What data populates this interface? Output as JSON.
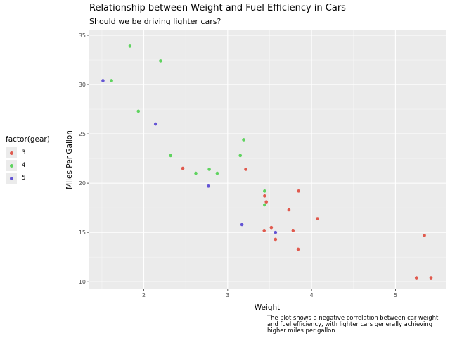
{
  "chart_data": {
    "type": "scatter",
    "title": "Relationship between Weight and Fuel Efficiency in Cars",
    "subtitle": "Should we be driving lighter cars?",
    "caption": "The plot shows a negative correlation between car weight and fuel efficiency, with lighter cars generally achieving higher miles per gallon",
    "xlabel": "Weight",
    "ylabel": "Miles Per Gallon",
    "xlim": [
      1.35,
      5.6
    ],
    "ylim": [
      9.3,
      35.5
    ],
    "xticks": [
      "2",
      "3",
      "4",
      "5"
    ],
    "yticks": [
      "10",
      "15",
      "20",
      "25",
      "30",
      "35"
    ],
    "grid": true,
    "legend": {
      "title": "factor(gear)",
      "position": "left",
      "labels": [
        "3",
        "4",
        "5"
      ]
    },
    "colors": {
      "3": "#e05a4e",
      "4": "#5fd35f",
      "5": "#6455d4"
    },
    "series": [
      {
        "name": "3",
        "points": [
          [
            3.215,
            21.4
          ],
          [
            3.44,
            18.7
          ],
          [
            3.46,
            18.1
          ],
          [
            3.57,
            14.3
          ],
          [
            4.07,
            16.4
          ],
          [
            3.73,
            17.3
          ],
          [
            3.78,
            15.2
          ],
          [
            5.25,
            10.4
          ],
          [
            5.424,
            10.4
          ],
          [
            5.345,
            14.7
          ],
          [
            2.465,
            21.5
          ],
          [
            3.52,
            15.5
          ],
          [
            3.435,
            15.2
          ],
          [
            3.84,
            13.3
          ],
          [
            3.845,
            19.2
          ]
        ]
      },
      {
        "name": "4",
        "points": [
          [
            2.62,
            21.0
          ],
          [
            2.875,
            21.0
          ],
          [
            2.32,
            22.8
          ],
          [
            3.19,
            24.4
          ],
          [
            3.15,
            22.8
          ],
          [
            3.44,
            19.2
          ],
          [
            3.44,
            17.8
          ],
          [
            2.2,
            32.4
          ],
          [
            1.615,
            30.4
          ],
          [
            1.835,
            33.9
          ],
          [
            1.935,
            27.3
          ],
          [
            2.78,
            21.4
          ]
        ]
      },
      {
        "name": "5",
        "points": [
          [
            2.14,
            26.0
          ],
          [
            1.513,
            30.4
          ],
          [
            3.17,
            15.8
          ],
          [
            2.77,
            19.7
          ],
          [
            3.57,
            15.0
          ]
        ]
      }
    ]
  }
}
